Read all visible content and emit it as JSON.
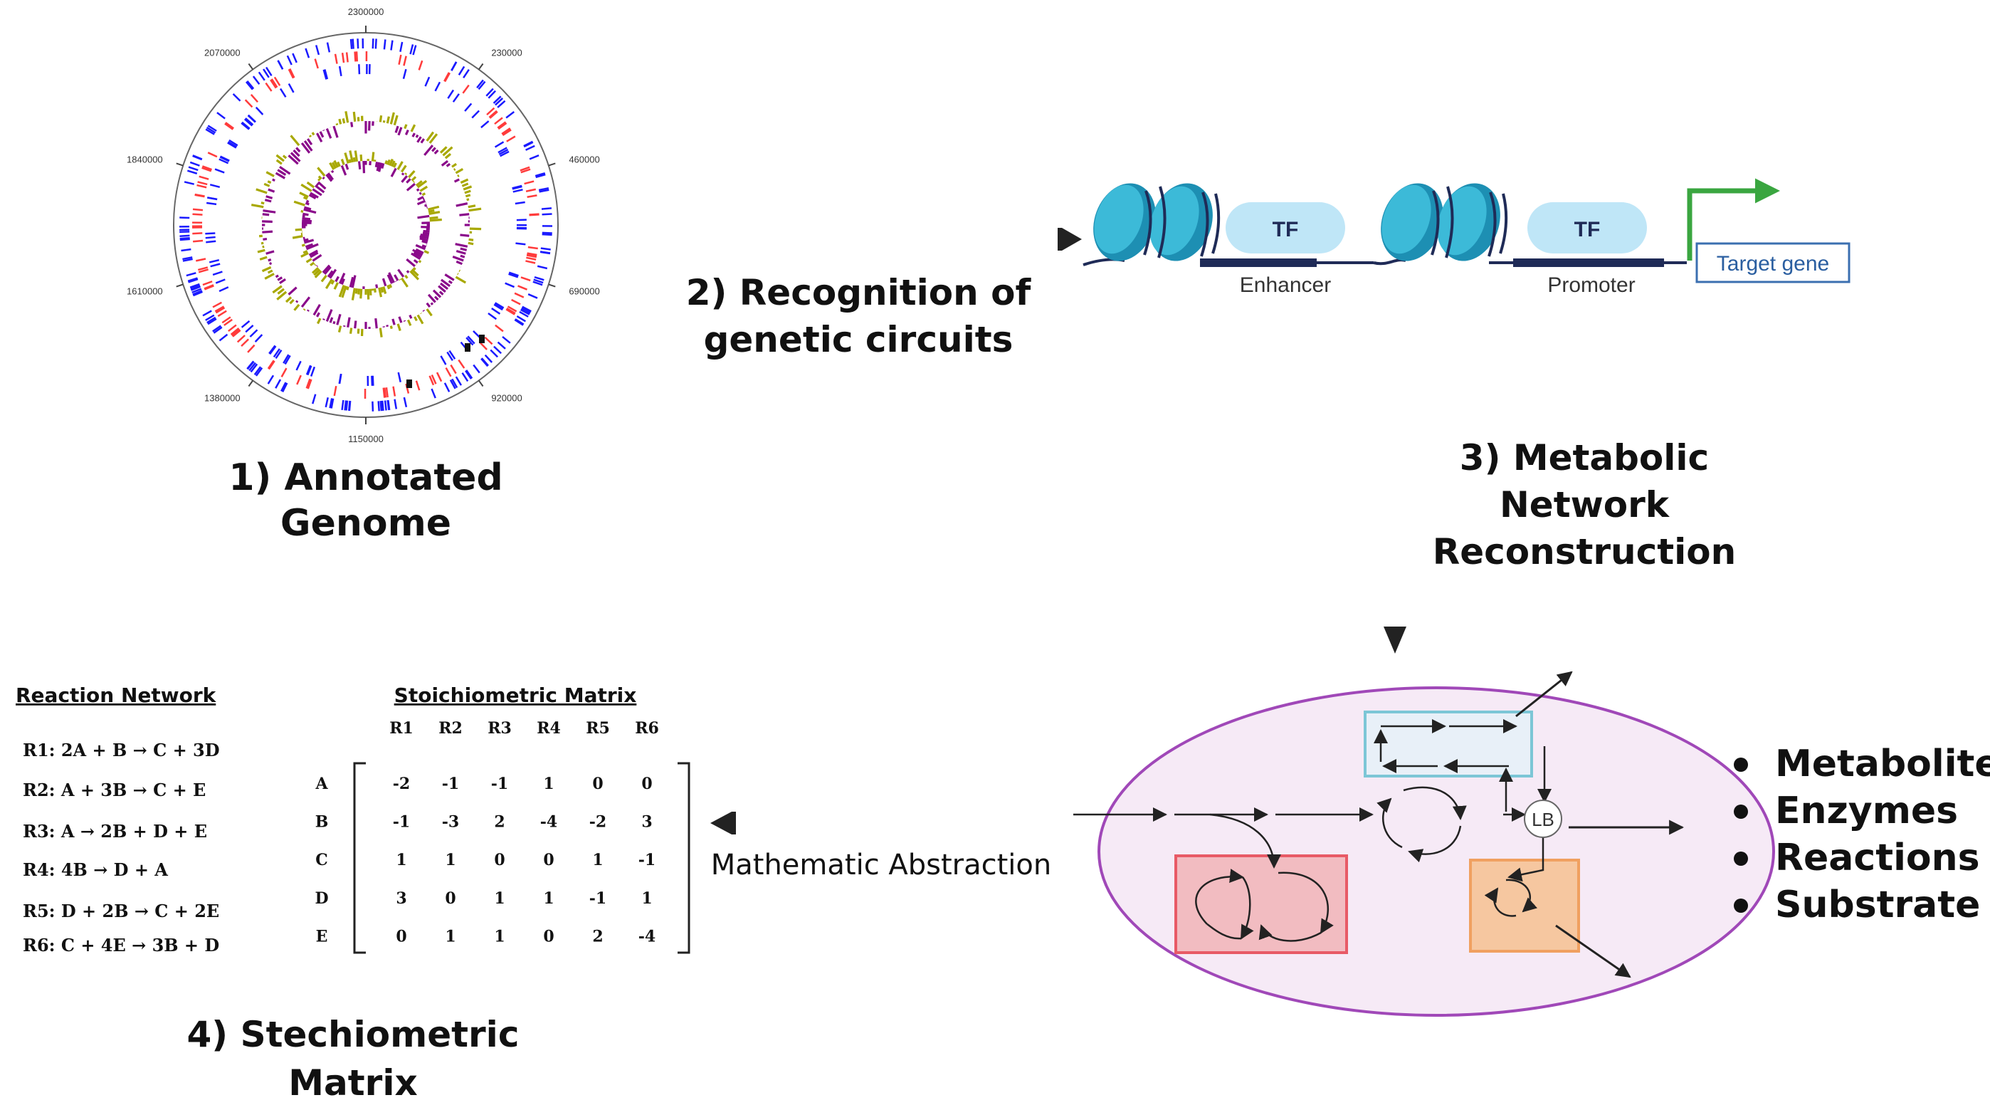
{
  "steps": {
    "s1": [
      "1) Annotated",
      "Genome"
    ],
    "s2": [
      "2) Recognition of",
      "genetic circuits"
    ],
    "s3": [
      "3) Metabolic",
      "Network",
      "Reconstruction"
    ],
    "s4": [
      "4) Stechiometric",
      "Matrix"
    ]
  },
  "genome": {
    "ticks": [
      "2300000",
      "230000",
      "460000",
      "690000",
      "920000",
      "1150000",
      "1380000",
      "1610000",
      "1840000",
      "2070000"
    ]
  },
  "circuit": {
    "tf1": "TF",
    "tf2": "TF",
    "enhancer": "Enhancer",
    "promoter": "Promoter",
    "target_gene": "Target gene"
  },
  "network": {
    "lb": "LB",
    "bullets": [
      "Metabolites",
      "Enzymes",
      "Reactions",
      "Substrate"
    ]
  },
  "abstraction_label": "Mathematic Abstraction",
  "reactions": {
    "title": "Reaction Network",
    "items": [
      "R1: 2A + B → C + 3D",
      "R2: A + 3B → C + E",
      "R3: A → 2B + D + E",
      "R4: 4B → D + A",
      "R5: D + 2B → C + 2E",
      "R6: C + 4E → 3B + D"
    ]
  },
  "matrix": {
    "title": "Stoichiometric Matrix",
    "columns": [
      "R1",
      "R2",
      "R3",
      "R4",
      "R5",
      "R6"
    ],
    "rows": [
      "A",
      "B",
      "C",
      "D",
      "E"
    ],
    "values": [
      [
        "-2",
        "-1",
        "-1",
        "1",
        "0",
        "0"
      ],
      [
        "-1",
        "-3",
        "2",
        "-4",
        "-2",
        "3"
      ],
      [
        "1",
        "1",
        "0",
        "0",
        "1",
        "-1"
      ],
      [
        "3",
        "0",
        "1",
        "1",
        "-1",
        "1"
      ],
      [
        "0",
        "1",
        "1",
        "0",
        "2",
        "-4"
      ]
    ]
  },
  "colors": {
    "arrow": "#222222",
    "genome_blue": "#1a1aff",
    "genome_red": "#ff3b3b",
    "gc_purple": "#8a0a8a",
    "gc_olive": "#a8a800",
    "nucleosome": "#2aa7c9",
    "tf_fill": "#bfe6f7",
    "target_border": "#3b6fb0",
    "tss_arrow": "#3aa640",
    "cell_fill": "#f6eaf6",
    "cell_border": "#a048b8",
    "box_red": "#f2bcc1",
    "box_orange": "#f6c7a0",
    "box_blue": "#e8f0f8"
  }
}
